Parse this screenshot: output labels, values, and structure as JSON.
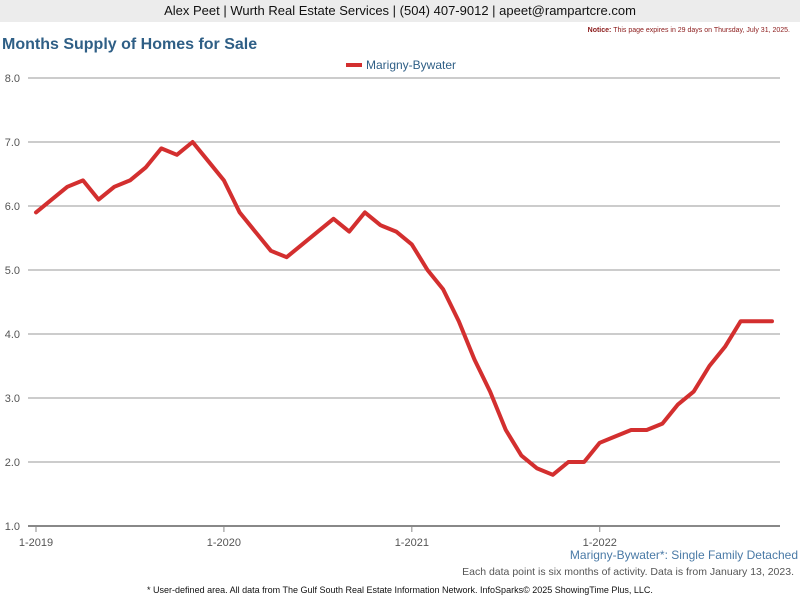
{
  "header": {
    "agent_line": "Alex Peet | Wurth Real Estate Services | (504) 407-9012 | apeet@rampartcre.com",
    "notice_label": "Notice:",
    "notice_text": "This page expires in 29 days on Thursday, July 31, 2025."
  },
  "footer": {
    "subtitle": "Marigny-Bywater*: Single Family Detached",
    "note": "Each data point is six months of activity. Data is from January 13, 2023.",
    "disclaimer": "* User-defined area. All data from The Gulf South Real Estate Information Network. InfoSparks© 2025 ShowingTime Plus, LLC."
  },
  "colors": {
    "series": "#d32f2f",
    "grid": "#999999",
    "title": "#2f5f86"
  },
  "chart_data": {
    "type": "line",
    "title": "Months Supply of Homes for Sale",
    "xlabel": "",
    "ylabel": "",
    "ylim": [
      1.0,
      8.0
    ],
    "y_ticks": [
      "1.0",
      "2.0",
      "3.0",
      "4.0",
      "5.0",
      "6.0",
      "7.0",
      "8.0"
    ],
    "x_ticks": [
      "1-2019",
      "1-2020",
      "1-2021",
      "1-2022"
    ],
    "x_tick_months": [
      0,
      12,
      24,
      36
    ],
    "x_range_months": [
      0,
      47
    ],
    "grid": true,
    "legend_position": "top-center",
    "series": [
      {
        "name": "Marigny-Bywater",
        "months": [
          0,
          1,
          2,
          3,
          4,
          5,
          6,
          7,
          8,
          9,
          10,
          11,
          12,
          13,
          14,
          15,
          16,
          17,
          18,
          19,
          20,
          21,
          22,
          23,
          24,
          25,
          26,
          27,
          28,
          29,
          30,
          31,
          32,
          33,
          34,
          35,
          36,
          37,
          38,
          39,
          40,
          41,
          42,
          43,
          44,
          45,
          46,
          47
        ],
        "values": [
          5.9,
          6.1,
          6.3,
          6.4,
          6.1,
          6.3,
          6.4,
          6.6,
          6.9,
          6.8,
          7.0,
          6.7,
          6.4,
          5.9,
          5.6,
          5.3,
          5.2,
          5.4,
          5.6,
          5.8,
          5.6,
          5.9,
          5.7,
          5.6,
          5.4,
          5.0,
          4.7,
          4.2,
          3.6,
          3.1,
          2.5,
          2.1,
          1.9,
          1.8,
          2.0,
          2.0,
          2.3,
          2.4,
          2.5,
          2.5,
          2.6,
          2.9,
          3.1,
          3.5,
          3.8,
          4.2,
          4.2,
          4.2
        ]
      }
    ]
  }
}
